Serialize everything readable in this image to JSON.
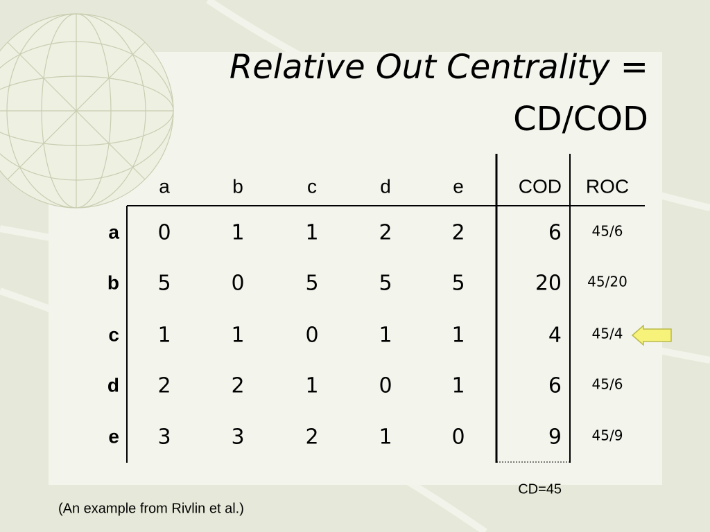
{
  "title": {
    "italic": "Relative Out Centrality",
    "equals": "=",
    "line2": "CD/COD"
  },
  "table": {
    "header": [
      "a",
      "b",
      "c",
      "d",
      "e",
      "COD",
      "ROC"
    ],
    "rows": [
      {
        "label": "a",
        "cells": [
          0,
          1,
          1,
          2,
          2,
          6,
          "45/6"
        ]
      },
      {
        "label": "b",
        "cells": [
          5,
          0,
          5,
          5,
          5,
          20,
          "45/20"
        ]
      },
      {
        "label": "c",
        "cells": [
          1,
          1,
          0,
          1,
          1,
          4,
          "45/4"
        ]
      },
      {
        "label": "d",
        "cells": [
          2,
          2,
          1,
          0,
          1,
          6,
          "45/6"
        ]
      },
      {
        "label": "e",
        "cells": [
          3,
          3,
          2,
          1,
          0,
          9,
          "45/9"
        ]
      }
    ],
    "total": "CD=45"
  },
  "caption": "(An example from Rivlin et al.)"
}
